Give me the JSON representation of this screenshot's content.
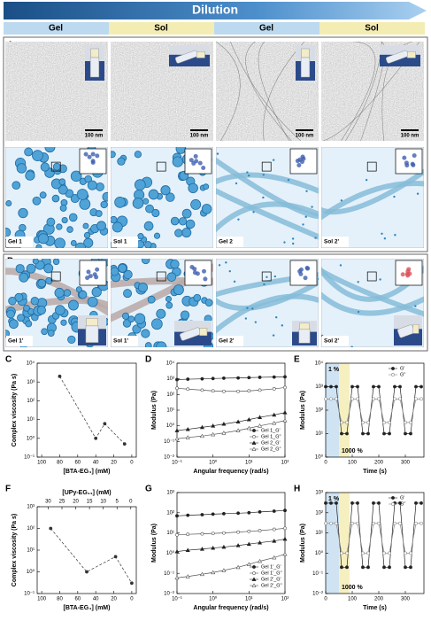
{
  "header": {
    "title": "Dilution"
  },
  "phases": [
    {
      "label": "Gel",
      "color": "#bcd9ef"
    },
    {
      "label": "Sol",
      "color": "#f4edb3"
    },
    {
      "label": "Gel",
      "color": "#bcd9ef"
    },
    {
      "label": "Sol",
      "color": "#f4edb3"
    }
  ],
  "panel_a": {
    "letter": "A",
    "scale_bars": [
      "100 nm",
      "100 nm",
      "100 nm",
      "100 nm"
    ],
    "labels": [
      "Gel 1",
      "Sol 1",
      "Gel 2",
      "Sol 2'"
    ]
  },
  "panel_b": {
    "letter": "B",
    "labels": [
      "Gel 1'",
      "Sol 1'",
      "Gel 2'",
      "Sol 2'"
    ]
  },
  "chart_data": [
    {
      "type": "line",
      "panel": "C",
      "ylabel": "Complex viscosity (Pa s)",
      "xlabel": "[BTA-EG₄] (mM)",
      "xlim": [
        105,
        -5
      ],
      "xticks": [
        100,
        80,
        60,
        40,
        20,
        0
      ],
      "ylim": [
        0.1,
        10000
      ],
      "ylog": true,
      "yticks": [
        {
          "value": 0.1,
          "label": "10⁻¹"
        },
        {
          "value": 1,
          "label": "10⁰"
        },
        {
          "value": 10,
          "label": "10¹"
        },
        {
          "value": 100,
          "label": "10²"
        },
        {
          "value": 1000,
          "label": "10³"
        },
        {
          "value": 10000,
          "label": "10⁴"
        }
      ],
      "x": [
        80,
        40,
        30,
        8
      ],
      "series": [
        {
          "color": "#333333",
          "marker": "circle",
          "line_style": "dashed",
          "values": [
            2000,
            1,
            6,
            0.5
          ]
        }
      ]
    },
    {
      "type": "line",
      "panel": "D",
      "ylabel": "Modulus (Pa)",
      "xlabel": "Angular frequency (rad/s)",
      "xlim": [
        0.1,
        100
      ],
      "xlog": true,
      "xticks": [
        {
          "value": 0.1,
          "label": "10⁻¹"
        },
        {
          "value": 1,
          "label": "10⁰"
        },
        {
          "value": 10,
          "label": "10¹"
        },
        {
          "value": 100,
          "label": "10²"
        }
      ],
      "ylim": [
        0.01,
        10000
      ],
      "ylog": true,
      "yticks": [
        {
          "value": 0.01,
          "label": "10⁻²"
        },
        {
          "value": 0.1,
          "label": "10⁻¹"
        },
        {
          "value": 1,
          "label": "10⁰"
        },
        {
          "value": 10,
          "label": "10¹"
        },
        {
          "value": 100,
          "label": "10²"
        },
        {
          "value": 1000,
          "label": "10³"
        },
        {
          "value": 10000,
          "label": "10⁴"
        }
      ],
      "legend": "lower right",
      "x": [
        0.1,
        0.2,
        0.5,
        1,
        2,
        5,
        10,
        20,
        50,
        100
      ],
      "series": [
        {
          "name": "Gel 1_G'",
          "color": "#222222",
          "marker": "circle",
          "values": [
            900,
            950,
            1000,
            1050,
            1100,
            1150,
            1200,
            1250,
            1300,
            1350
          ]
        },
        {
          "name": "Gel 1_G''",
          "color": "#555555",
          "marker": "open-circle",
          "values": [
            250,
            220,
            190,
            170,
            160,
            160,
            170,
            190,
            230,
            280
          ]
        },
        {
          "name": "Gel 2_G'",
          "color": "#222222",
          "marker": "triangle",
          "values": [
            0.5,
            0.6,
            0.8,
            1,
            1.3,
            1.8,
            2.5,
            3.5,
            5,
            7
          ]
        },
        {
          "name": "Gel 2_G''",
          "color": "#555555",
          "marker": "open-triangle",
          "values": [
            0.15,
            0.18,
            0.22,
            0.28,
            0.35,
            0.5,
            0.7,
            1,
            1.5,
            2.2
          ]
        }
      ]
    },
    {
      "type": "line",
      "panel": "E",
      "ylabel": "Modulus (Pa)",
      "xlabel": "Time (s)",
      "xlim": [
        0,
        370
      ],
      "xticks": [
        0,
        100,
        200,
        300
      ],
      "ylim": [
        1,
        10000
      ],
      "ylog": true,
      "yticks": [
        {
          "value": 1,
          "label": "10⁰"
        },
        {
          "value": 10,
          "label": "10¹"
        },
        {
          "value": 100,
          "label": "10²"
        },
        {
          "value": 1000,
          "label": "10³"
        },
        {
          "value": 10000,
          "label": "10⁴"
        }
      ],
      "legend": "upper right",
      "bands": [
        {
          "label": "1 %",
          "x": [
            0,
            50
          ],
          "color": "#cfe3f3",
          "label_position": "top"
        },
        {
          "label": "1000 %",
          "x": [
            50,
            90
          ],
          "color": "#f6efc0",
          "label_position": "bottom"
        }
      ],
      "x": [
        0,
        20,
        40,
        60,
        80,
        100,
        120,
        140,
        160,
        180,
        200,
        220,
        240,
        260,
        280,
        300,
        320,
        340,
        360
      ],
      "series": [
        {
          "name": "G'",
          "color": "#222222",
          "marker": "circle",
          "values": [
            1000,
            1000,
            1000,
            10,
            10,
            1000,
            1000,
            10,
            10,
            1000,
            1000,
            10,
            10,
            1000,
            1000,
            10,
            10,
            1000,
            1000
          ]
        },
        {
          "name": "G''",
          "color": "#888888",
          "marker": "open-circle",
          "values": [
            300,
            300,
            300,
            30,
            30,
            300,
            300,
            30,
            30,
            300,
            300,
            30,
            30,
            300,
            300,
            30,
            30,
            300,
            300
          ]
        }
      ]
    },
    {
      "type": "line",
      "panel": "F",
      "ylabel": "Complex viscosity (Pa s)",
      "xlabel": "[BTA-EG₄] (mM)",
      "x2label": "[UPy-EG₁₁] (mM)",
      "xlim": [
        105,
        -5
      ],
      "xticks": [
        100,
        80,
        60,
        40,
        20,
        0
      ],
      "x2lim": [
        34,
        -2
      ],
      "x2ticks": [
        30,
        25,
        20,
        15,
        10,
        5,
        0
      ],
      "ylim": [
        0.1,
        1000
      ],
      "ylog": true,
      "yticks": [
        {
          "value": 0.1,
          "label": "10⁻¹"
        },
        {
          "value": 1,
          "label": "10⁰"
        },
        {
          "value": 10,
          "label": "10¹"
        },
        {
          "value": 100,
          "label": "10²"
        },
        {
          "value": 1000,
          "label": "10³"
        }
      ],
      "x": [
        90,
        50,
        18,
        0
      ],
      "series": [
        {
          "color": "#333333",
          "marker": "circle",
          "line_style": "dashed",
          "values": [
            100,
            1,
            5,
            0.3
          ]
        }
      ]
    },
    {
      "type": "line",
      "panel": "G",
      "ylabel": "Modulus (Pa)",
      "xlabel": "Angular frequency (rad/s)",
      "xlim": [
        0.1,
        100
      ],
      "xlog": true,
      "xticks": [
        {
          "value": 0.1,
          "label": "10⁻¹"
        },
        {
          "value": 1,
          "label": "10⁰"
        },
        {
          "value": 10,
          "label": "10¹"
        },
        {
          "value": 100,
          "label": "10²"
        }
      ],
      "ylim": [
        0.01,
        1000
      ],
      "ylog": true,
      "yticks": [
        {
          "value": 0.01,
          "label": "10⁻²"
        },
        {
          "value": 0.1,
          "label": "10⁻¹"
        },
        {
          "value": 1,
          "label": "10⁰"
        },
        {
          "value": 10,
          "label": "10¹"
        },
        {
          "value": 100,
          "label": "10²"
        },
        {
          "value": 1000,
          "label": "10³"
        }
      ],
      "legend": "lower right",
      "x": [
        0.1,
        0.2,
        0.5,
        1,
        2,
        5,
        10,
        20,
        50,
        100
      ],
      "series": [
        {
          "name": "Gel 1'_G'",
          "color": "#222222",
          "marker": "circle",
          "values": [
            70,
            75,
            80,
            85,
            90,
            95,
            100,
            110,
            120,
            130
          ]
        },
        {
          "name": "Gel 1'_G''",
          "color": "#555555",
          "marker": "open-circle",
          "values": [
            8,
            8.5,
            9,
            9.5,
            10,
            11,
            12,
            13,
            15,
            17
          ]
        },
        {
          "name": "Gel 2'_G'",
          "color": "#222222",
          "marker": "triangle",
          "values": [
            1.2,
            1.4,
            1.6,
            1.8,
            2,
            2.4,
            2.8,
            3.3,
            4,
            5
          ]
        },
        {
          "name": "Gel 2'_G''",
          "color": "#555555",
          "marker": "open-triangle",
          "values": [
            0.06,
            0.07,
            0.09,
            0.11,
            0.14,
            0.2,
            0.28,
            0.4,
            0.6,
            0.9
          ]
        }
      ]
    },
    {
      "type": "line",
      "panel": "H",
      "ylabel": "Modulus (Pa)",
      "xlabel": "Time (s)",
      "xlim": [
        0,
        370
      ],
      "xticks": [
        0,
        100,
        200,
        300
      ],
      "ylim": [
        0.01,
        1000
      ],
      "ylog": true,
      "yticks": [
        {
          "value": 0.01,
          "label": "10⁻²"
        },
        {
          "value": 0.1,
          "label": "10⁻¹"
        },
        {
          "value": 1,
          "label": "10⁰"
        },
        {
          "value": 10,
          "label": "10¹"
        },
        {
          "value": 100,
          "label": "10²"
        },
        {
          "value": 1000,
          "label": "10³"
        }
      ],
      "legend": "upper right",
      "bands": [
        {
          "label": "1 %",
          "x": [
            0,
            50
          ],
          "color": "#cfe3f3",
          "label_position": "top"
        },
        {
          "label": "1000 %",
          "x": [
            50,
            90
          ],
          "color": "#f6efc0",
          "label_position": "bottom"
        }
      ],
      "x": [
        0,
        20,
        40,
        60,
        80,
        100,
        120,
        140,
        160,
        180,
        200,
        220,
        240,
        260,
        280,
        300,
        320,
        340,
        360
      ],
      "series": [
        {
          "name": "G'",
          "color": "#222222",
          "marker": "circle",
          "values": [
            300,
            300,
            300,
            0.2,
            0.2,
            300,
            300,
            0.2,
            0.2,
            300,
            300,
            0.2,
            0.2,
            300,
            300,
            0.2,
            0.2,
            300,
            300
          ]
        },
        {
          "name": "G''",
          "color": "#888888",
          "marker": "open-circle",
          "values": [
            30,
            30,
            30,
            1,
            1,
            30,
            30,
            1,
            1,
            30,
            30,
            1,
            1,
            30,
            30,
            1,
            1,
            30,
            30
          ]
        }
      ]
    }
  ]
}
